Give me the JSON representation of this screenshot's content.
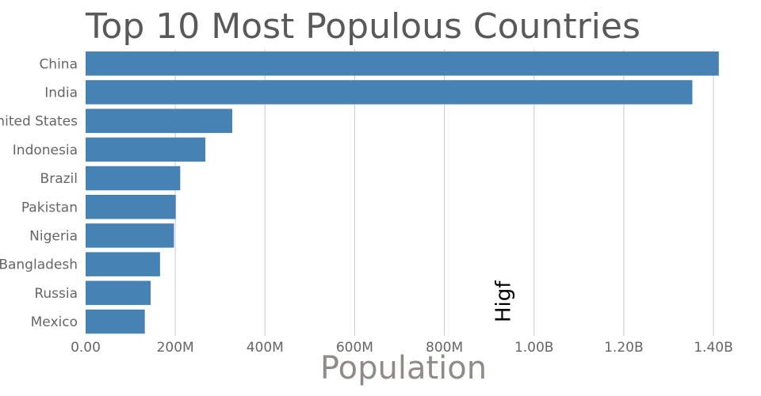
{
  "chart_data": {
    "type": "bar",
    "orientation": "horizontal",
    "title": "Top 10 Most Populous Countries",
    "xlabel": "Population",
    "ylabel": "",
    "categories": [
      "China",
      "India",
      "United States",
      "Indonesia",
      "Brazil",
      "Pakistan",
      "Nigeria",
      "Bangladesh",
      "Russia",
      "Mexico"
    ],
    "values": [
      1412000000,
      1353000000,
      327000000,
      267000000,
      211000000,
      201000000,
      197000000,
      166000000,
      145000000,
      132000000
    ],
    "xlim": [
      0,
      1400000000
    ],
    "x_ticks": [
      0,
      200000000,
      400000000,
      600000000,
      800000000,
      1000000000,
      1200000000,
      1400000000
    ],
    "x_tick_labels": [
      "0.00",
      "200M",
      "400M",
      "600M",
      "800M",
      "1.00B",
      "1.20B",
      "1.40B"
    ],
    "bar_color": "#4682b4",
    "grid": "vertical",
    "annotation": {
      "text": "Higf",
      "x": 950000000,
      "rotation": "vertical"
    }
  }
}
